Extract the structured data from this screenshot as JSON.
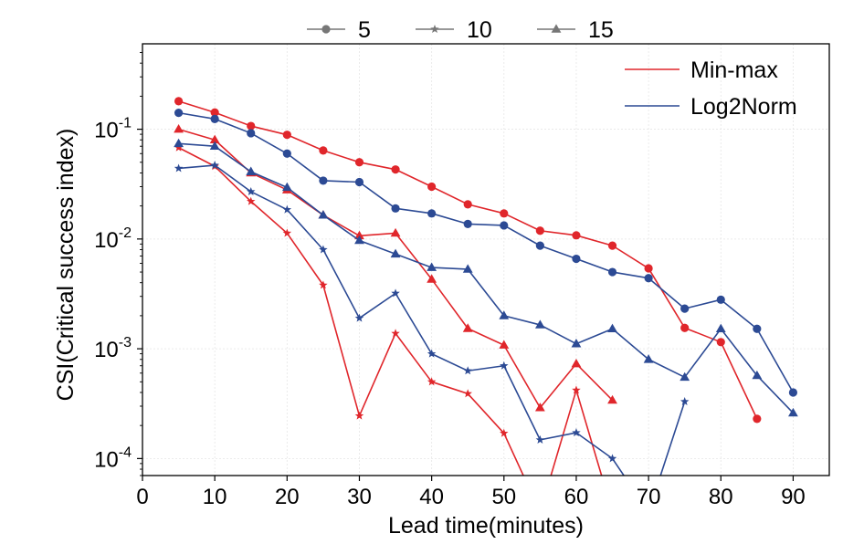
{
  "chart_data": {
    "type": "line",
    "xlabel": "Lead time(minutes)",
    "ylabel": "CSI(Critical success index)",
    "xlim": [
      0,
      95
    ],
    "ylim": [
      7e-05,
      0.6
    ],
    "yscale": "log",
    "x_ticks": [
      "0",
      "10",
      "20",
      "30",
      "40",
      "50",
      "60",
      "70",
      "80",
      "90"
    ],
    "y_ticks": [
      {
        "base": "10",
        "exp": "-1",
        "value": 0.1
      },
      {
        "base": "10",
        "exp": "-2",
        "value": 0.01
      },
      {
        "base": "10",
        "exp": "-3",
        "value": 0.001
      },
      {
        "base": "10",
        "exp": "-4",
        "value": 0.0001
      }
    ],
    "legend_markers": [
      {
        "label": "5",
        "marker": "circle"
      },
      {
        "label": "10",
        "marker": "star"
      },
      {
        "label": "15",
        "marker": "triangle"
      }
    ],
    "legend_methods": [
      {
        "label": "Min-max",
        "color": "#e0262b"
      },
      {
        "label": "Log2Norm",
        "color": "#2c4a94"
      }
    ],
    "series": [
      {
        "name": "Min-max 5",
        "method": "Min-max",
        "marker": "circle",
        "color": "#e0262b",
        "x": [
          5,
          10,
          15,
          20,
          25,
          30,
          35,
          40,
          45,
          50,
          55,
          60,
          65,
          70,
          75,
          80,
          85
        ],
        "values": [
          0.18,
          0.142,
          0.107,
          0.089,
          0.064,
          0.05,
          0.043,
          0.03,
          0.0207,
          0.0171,
          0.0119,
          0.0108,
          0.0087,
          0.0054,
          0.00155,
          0.00115,
          0.00023
        ]
      },
      {
        "name": "Min-max 10",
        "method": "Min-max",
        "marker": "star",
        "color": "#e0262b",
        "x": [
          5,
          10,
          15,
          20,
          25,
          30,
          35,
          40,
          45,
          50,
          55,
          60,
          65
        ],
        "values": [
          0.068,
          0.046,
          0.022,
          0.0113,
          0.0038,
          0.000245,
          0.00138,
          0.0005,
          0.00039,
          0.00017,
          0.0,
          0.00042,
          0.0
        ]
      },
      {
        "name": "Min-max 15",
        "method": "Min-max",
        "marker": "triangle",
        "color": "#e0262b",
        "x": [
          5,
          10,
          15,
          20,
          25,
          30,
          35,
          40,
          45,
          50,
          55,
          60,
          65
        ],
        "values": [
          0.1,
          0.08,
          0.04,
          0.028,
          0.0165,
          0.0107,
          0.0113,
          0.0043,
          0.00153,
          0.00108,
          0.00029,
          0.00073,
          0.00034
        ]
      },
      {
        "name": "Log2Norm 5",
        "method": "Log2Norm",
        "marker": "circle",
        "color": "#2c4a94",
        "x": [
          5,
          10,
          15,
          20,
          25,
          30,
          35,
          40,
          45,
          50,
          55,
          60,
          65,
          70,
          75,
          80,
          85,
          90
        ],
        "values": [
          0.141,
          0.124,
          0.092,
          0.06,
          0.034,
          0.033,
          0.019,
          0.0171,
          0.0137,
          0.0133,
          0.0087,
          0.0066,
          0.005,
          0.0044,
          0.00232,
          0.0028,
          0.00152,
          0.0004
        ]
      },
      {
        "name": "Log2Norm 10",
        "method": "Log2Norm",
        "marker": "star",
        "color": "#2c4a94",
        "x": [
          5,
          10,
          15,
          20,
          25,
          30,
          35,
          40,
          45,
          50,
          55,
          60,
          65,
          70,
          75
        ],
        "values": [
          0.044,
          0.047,
          0.027,
          0.0185,
          0.008,
          0.0019,
          0.0032,
          0.0009,
          0.00063,
          0.0007,
          0.000148,
          0.000172,
          0.0001,
          0.0,
          0.00033
        ]
      },
      {
        "name": "Log2Norm 15",
        "method": "Log2Norm",
        "marker": "triangle",
        "color": "#2c4a94",
        "x": [
          5,
          10,
          15,
          20,
          25,
          30,
          35,
          40,
          45,
          50,
          55,
          60,
          65,
          70,
          75,
          80,
          85,
          90
        ],
        "values": [
          0.074,
          0.07,
          0.041,
          0.0295,
          0.0165,
          0.0097,
          0.0073,
          0.0055,
          0.0053,
          0.002,
          0.00165,
          0.00111,
          0.00152,
          0.0008,
          0.00055,
          0.00152,
          0.00057,
          0.00026
        ]
      }
    ]
  }
}
